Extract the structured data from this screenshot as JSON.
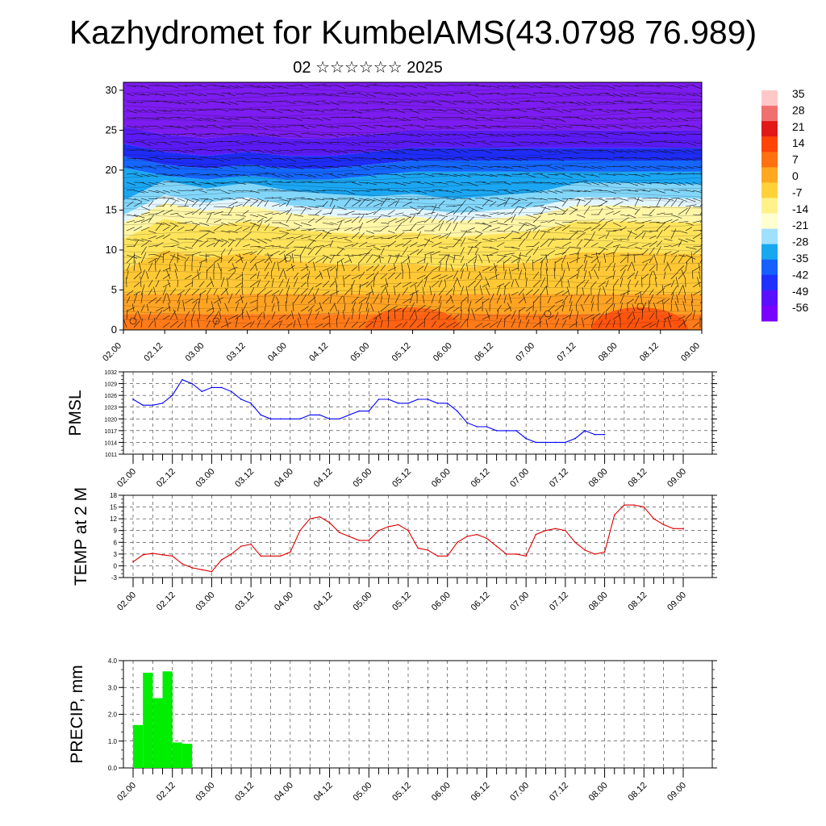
{
  "title": "Kazhydromet for KumbelAMS(43.0798 76.989)",
  "subtitle": "02 ☆☆☆☆☆☆ 2025",
  "time_labels": [
    "02.00",
    "02.12",
    "03.00",
    "03.12",
    "04.00",
    "04.12",
    "05.00",
    "05.12",
    "06.00",
    "06.12",
    "07.00",
    "07.12",
    "08.00",
    "08.12",
    "09.00"
  ],
  "colors": {
    "pmsl_line": "#0000ff",
    "temp_line": "#e00000",
    "precip_bar": "#00ee00",
    "colorbar": [
      "#7a00ff",
      "#5a10ff",
      "#2030ff",
      "#1560ff",
      "#18a8f0",
      "#9fe0ff",
      "#ffffd0",
      "#fff28a",
      "#ffd23a",
      "#ffa820",
      "#ff7010",
      "#ff4408",
      "#e01818",
      "#f07070",
      "#ffc8c8"
    ]
  },
  "chart_data": [
    {
      "type": "heatmap",
      "name": "cross-section",
      "description": "temperature contours with wind arrows",
      "ytick_labels": [
        "0",
        "5",
        "10",
        "15",
        "20",
        "25",
        "30"
      ],
      "ylim": [
        0,
        31
      ],
      "colorbar_labels": [
        "35",
        "28",
        "21",
        "14",
        "7",
        "0",
        "-7",
        "-14",
        "-21",
        "-28",
        "-35",
        "-42",
        "-49",
        "-56"
      ],
      "freezing_level": [
        13,
        15.5,
        14.5,
        15.2,
        14.2,
        13.8,
        13.5,
        13.8,
        13.2,
        13.6,
        14.0,
        15.2,
        15.2,
        15.1,
        15.0
      ],
      "tropopause_level": [
        23.5,
        22.5,
        22,
        22.5,
        22,
        22,
        22.5,
        23,
        23,
        23,
        23,
        23,
        23,
        23,
        23
      ],
      "grid": false
    },
    {
      "type": "line",
      "ylabel": "PMSL",
      "ylim": [
        1011,
        1032
      ],
      "ytick_labels": [
        "1032",
        "1029",
        "1026",
        "1023",
        "1020",
        "1017",
        "1014",
        "1011"
      ],
      "x_step_hours": 3,
      "values": [
        1025,
        1023.5,
        1023.5,
        1024,
        1026,
        1030,
        1029,
        1027,
        1028,
        1028,
        1027,
        1025,
        1024,
        1021,
        1020,
        1020,
        1020,
        1020,
        1021,
        1021,
        1020,
        1020,
        1021,
        1022,
        1022,
        1025,
        1025,
        1024,
        1024,
        1025,
        1025,
        1024,
        1024,
        1022,
        1019,
        1018,
        1018,
        1017,
        1017,
        1017,
        1015,
        1014,
        1014,
        1014,
        1014,
        1015,
        1017,
        1016,
        1016
      ],
      "grid": true
    },
    {
      "type": "line",
      "ylabel": "TEMP at 2 M",
      "ylim": [
        -3,
        18
      ],
      "ytick_labels": [
        "18",
        "15",
        "12",
        "9",
        "6",
        "3",
        "0",
        "-3"
      ],
      "x_step_hours": 3,
      "values": [
        1,
        2.8,
        3.2,
        2.8,
        2.5,
        0.5,
        -0.5,
        -1,
        -1.5,
        1.5,
        3,
        5,
        5.5,
        2.5,
        2.5,
        2.5,
        3.5,
        9,
        12,
        12.5,
        11,
        8.5,
        7.5,
        6.5,
        6.5,
        9,
        10,
        10.5,
        9,
        4.5,
        4,
        2.5,
        2.5,
        6,
        7.5,
        8,
        7,
        5,
        3,
        3,
        2.5,
        8,
        9,
        9.5,
        9,
        6,
        4,
        3,
        3.5,
        13,
        15.5,
        15.5,
        15,
        12,
        10.5,
        9.5,
        9.5
      ],
      "grid": true
    },
    {
      "type": "bar",
      "ylabel": "PRECIP, mm",
      "ylim": [
        0,
        4.0
      ],
      "ytick_labels": [
        "4.0",
        "3.0",
        "2.0",
        "1.0",
        "0.0"
      ],
      "x_step_hours": 3,
      "values": [
        1.6,
        3.55,
        2.6,
        3.6,
        0.95,
        0.9
      ],
      "grid": true
    }
  ]
}
